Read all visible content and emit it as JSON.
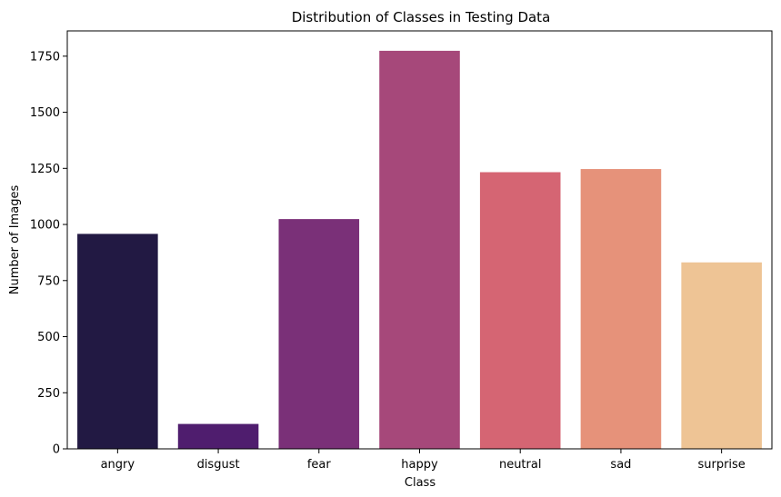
{
  "chart_data": {
    "type": "bar",
    "title": "Distribution of Classes in Testing Data",
    "xlabel": "Class",
    "ylabel": "Number of Images",
    "categories": [
      "angry",
      "disgust",
      "fear",
      "happy",
      "neutral",
      "sad",
      "surprise"
    ],
    "values": [
      958,
      111,
      1024,
      1774,
      1233,
      1247,
      831
    ],
    "colors": [
      "#221943",
      "#4f1d6e",
      "#7a3078",
      "#a6487a",
      "#d56573",
      "#e6927a",
      "#eec495"
    ],
    "yticks": [
      0,
      250,
      500,
      750,
      1000,
      1250,
      1500,
      1750
    ],
    "ylim": [
      0,
      1862.7
    ],
    "grid": false,
    "legend": "none"
  }
}
